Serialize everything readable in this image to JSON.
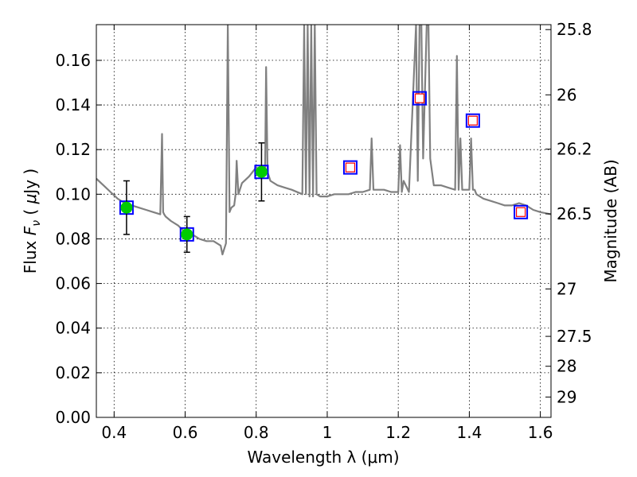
{
  "chart_data": {
    "type": "line",
    "xlabel": "Wavelength  λ (μm)",
    "ylabel": "Flux  F_ν  ( μJy )",
    "ylabel_parts": {
      "pre": "Flux  ",
      "sym": "F",
      "sub": "ν",
      "post": "  ( ",
      "mu": "μ",
      "unit": "Jy )"
    },
    "right_ylabel": "Magnitude (AB)",
    "xlim": [
      0.35,
      1.63
    ],
    "ylim": [
      0.0,
      0.176
    ],
    "grid": true,
    "x_ticks": [
      0.4,
      0.6,
      0.8,
      1.0,
      1.2,
      1.4,
      1.6
    ],
    "x_tick_labels": [
      "0.4",
      "0.6",
      "0.8",
      "1",
      "1.2",
      "1.4",
      "1.6"
    ],
    "y_ticks": [
      0.0,
      0.02,
      0.04,
      0.06,
      0.08,
      0.1,
      0.12,
      0.14,
      0.16
    ],
    "y_tick_labels": [
      "0.00",
      "0.02",
      "0.04",
      "0.06",
      "0.08",
      "0.10",
      "0.12",
      "0.14",
      "0.16"
    ],
    "right_ticks": [
      {
        "label": "25.8",
        "mag": 25.8
      },
      {
        "label": "26",
        "mag": 26.0
      },
      {
        "label": "26.2",
        "mag": 26.2
      },
      {
        "label": "26.5",
        "mag": 26.5
      },
      {
        "label": "27",
        "mag": 27.0
      },
      {
        "label": "27.5",
        "mag": 27.5
      },
      {
        "label": "28",
        "mag": 28.0
      },
      {
        "label": "29",
        "mag": 29.0
      }
    ],
    "series": [
      {
        "kind": "model_spectrum",
        "color": "#808080",
        "x": [
          0.35,
          0.37,
          0.39,
          0.41,
          0.43,
          0.45,
          0.47,
          0.49,
          0.51,
          0.53,
          0.535,
          0.538,
          0.541,
          0.545,
          0.56,
          0.58,
          0.6,
          0.62,
          0.64,
          0.66,
          0.68,
          0.7,
          0.705,
          0.715,
          0.72,
          0.725,
          0.73,
          0.738,
          0.742,
          0.745,
          0.75,
          0.76,
          0.78,
          0.8,
          0.82,
          0.825,
          0.828,
          0.832,
          0.84,
          0.86,
          0.88,
          0.9,
          0.93,
          0.935,
          0.94,
          0.945,
          0.95,
          0.955,
          0.96,
          0.965,
          0.97,
          0.98,
          1.0,
          1.02,
          1.04,
          1.06,
          1.08,
          1.1,
          1.12,
          1.125,
          1.13,
          1.14,
          1.16,
          1.18,
          1.2,
          1.205,
          1.21,
          1.215,
          1.23,
          1.25,
          1.255,
          1.26,
          1.265,
          1.27,
          1.28,
          1.285,
          1.29,
          1.3,
          1.32,
          1.34,
          1.36,
          1.365,
          1.37,
          1.375,
          1.38,
          1.39,
          1.4,
          1.405,
          1.41,
          1.415,
          1.42,
          1.44,
          1.46,
          1.48,
          1.5,
          1.52,
          1.54,
          1.56,
          1.58,
          1.6,
          1.63
        ],
        "y": [
          0.107,
          0.104,
          0.101,
          0.098,
          0.096,
          0.095,
          0.094,
          0.093,
          0.092,
          0.091,
          0.127,
          0.092,
          0.091,
          0.09,
          0.088,
          0.086,
          0.083,
          0.082,
          0.08,
          0.079,
          0.079,
          0.077,
          0.073,
          0.078,
          0.176,
          0.092,
          0.094,
          0.095,
          0.1,
          0.115,
          0.1,
          0.105,
          0.108,
          0.112,
          0.11,
          0.11,
          0.157,
          0.11,
          0.106,
          0.104,
          0.103,
          0.102,
          0.1,
          0.176,
          0.1,
          0.176,
          0.099,
          0.176,
          0.099,
          0.176,
          0.1,
          0.099,
          0.099,
          0.1,
          0.1,
          0.1,
          0.101,
          0.101,
          0.102,
          0.125,
          0.102,
          0.102,
          0.102,
          0.101,
          0.101,
          0.122,
          0.101,
          0.106,
          0.101,
          0.176,
          0.106,
          0.176,
          0.176,
          0.116,
          0.176,
          0.176,
          0.116,
          0.104,
          0.104,
          0.103,
          0.102,
          0.162,
          0.102,
          0.125,
          0.102,
          0.102,
          0.102,
          0.125,
          0.102,
          0.102,
          0.1,
          0.098,
          0.097,
          0.096,
          0.095,
          0.095,
          0.096,
          0.095,
          0.093,
          0.092,
          0.091
        ]
      },
      {
        "kind": "model_photometry",
        "marker": "square",
        "color": "#0000ff",
        "x": [
          0.435,
          0.605,
          0.815,
          1.065,
          1.26,
          1.41,
          1.545
        ],
        "y": [
          0.094,
          0.082,
          0.11,
          0.112,
          0.143,
          0.133,
          0.092
        ]
      },
      {
        "kind": "observed_detections",
        "marker": "circle",
        "color": "#00cc00",
        "x": [
          0.435,
          0.605,
          0.815
        ],
        "y": [
          0.094,
          0.082,
          0.11
        ],
        "err": [
          0.012,
          0.008,
          0.013
        ]
      },
      {
        "kind": "observed_limits",
        "marker": "open-square",
        "color": "#ff0000",
        "x": [
          1.065,
          1.26,
          1.41,
          1.545
        ],
        "y": [
          0.112,
          0.143,
          0.133,
          0.092
        ]
      }
    ]
  }
}
